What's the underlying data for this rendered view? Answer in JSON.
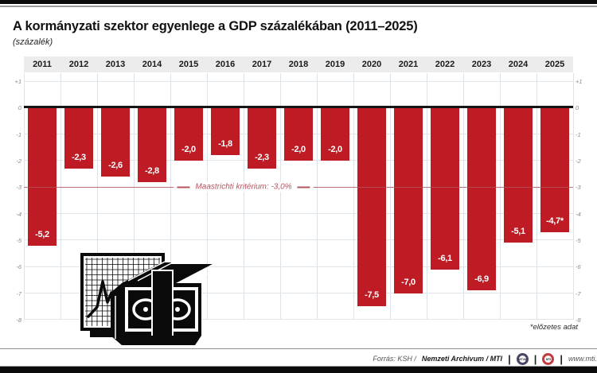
{
  "page": {
    "title": "A kormányzati szektor egyenlege a GDP százalékában (2011–2025)",
    "subtitle": "(százalék)",
    "footnote": "*előzetes adat"
  },
  "chart_data": {
    "type": "bar",
    "title": "A kormányzati szektor egyenlege a GDP százalékában (2011–2025)",
    "unit_label": "(százalék)",
    "categories": [
      "2011",
      "2012",
      "2013",
      "2014",
      "2015",
      "2016",
      "2017",
      "2018",
      "2019",
      "2020",
      "2021",
      "2022",
      "2023",
      "2024",
      "2025"
    ],
    "values": [
      -5.2,
      -2.3,
      -2.6,
      -2.8,
      -2.0,
      -1.8,
      -2.3,
      -2.0,
      -2.0,
      -7.5,
      -7.0,
      -6.1,
      -6.9,
      -5.1,
      -4.7
    ],
    "value_labels": [
      "-5,2",
      "-2,3",
      "-2,6",
      "-2,8",
      "-2,0",
      "-1,8",
      "-2,3",
      "-2,0",
      "-2,0",
      "-7,5",
      "-7,0",
      "-6,1",
      "-6,9",
      "-5,1",
      "-4,7*"
    ],
    "ylim": [
      -8,
      1
    ],
    "grid": true,
    "legend_position": "none",
    "y_ticks": [
      {
        "v": 1,
        "label": "+1"
      },
      {
        "v": 0,
        "label": "0"
      },
      {
        "v": -1,
        "label": "-1"
      },
      {
        "v": -2,
        "label": "-2"
      },
      {
        "v": -3,
        "label": "-3"
      },
      {
        "v": -4,
        "label": "-4"
      },
      {
        "v": -5,
        "label": "-5"
      },
      {
        "v": -6,
        "label": "-6"
      },
      {
        "v": -7,
        "label": "-7"
      },
      {
        "v": -8,
        "label": "-8"
      }
    ],
    "reference_line": {
      "value": -3,
      "label": "Maastrichti kritérium: -3,0%"
    },
    "bar_color": "#be1b24",
    "reference_color": "#b4555e",
    "zero_line_color": "#151515"
  },
  "footer": {
    "source_label": "Forrás: KSH /",
    "source_bold": "Nemzeti Archivum / MTI",
    "divider": "|",
    "mtva_logo_text": "MTVA",
    "mti_logo_text": "MTI",
    "url": "www.mti.hu"
  },
  "illustration": {
    "name": "line-chart-and-banknotes-clipart"
  }
}
